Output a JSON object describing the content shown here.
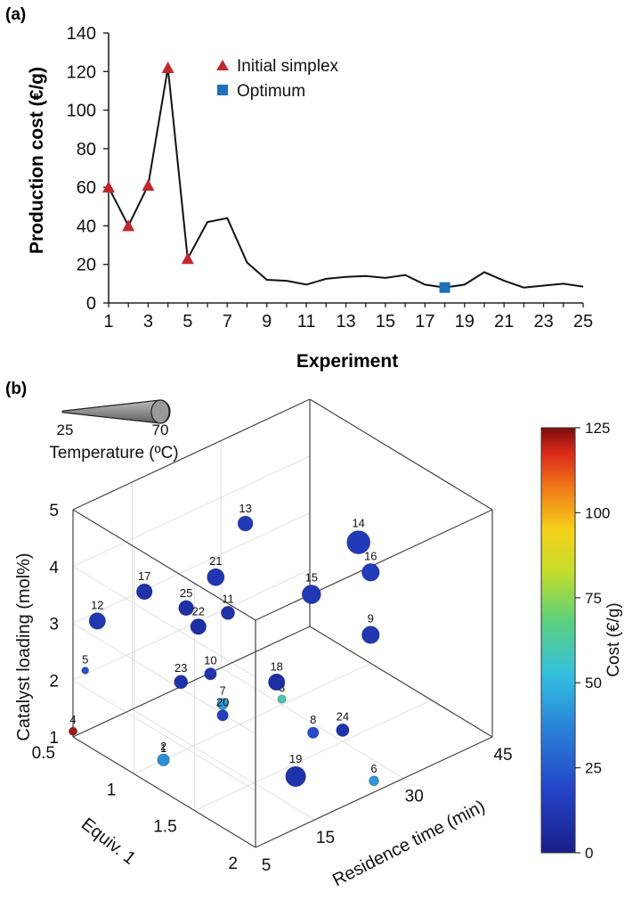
{
  "colors": {
    "line": "#111111",
    "initial": "#c0282e",
    "optimum": "#1c6fb8",
    "axis": "#222222",
    "box": "#444444",
    "grid": "#d9d9d9"
  },
  "chart_data": [
    {
      "panel": "(a)",
      "type": "line",
      "xlabel": "Experiment",
      "ylabel": "Production cost (€/g)",
      "xlim": [
        1,
        25
      ],
      "ylim": [
        0,
        140
      ],
      "xticks": [
        "1",
        "3",
        "5",
        "7",
        "9",
        "11",
        "13",
        "15",
        "17",
        "19",
        "21",
        "23",
        "25"
      ],
      "yticks": [
        "0",
        "20",
        "40",
        "60",
        "80",
        "100",
        "120",
        "140"
      ],
      "x": [
        1,
        2,
        3,
        4,
        5,
        6,
        7,
        8,
        9,
        10,
        11,
        12,
        13,
        14,
        15,
        16,
        17,
        18,
        19,
        20,
        21,
        22,
        23,
        24,
        25
      ],
      "y": [
        60,
        40,
        61,
        122,
        23,
        42,
        44,
        21,
        12,
        11.5,
        9.5,
        12.5,
        13.5,
        14,
        13,
        14.5,
        9.5,
        8,
        9.5,
        16,
        11.5,
        8,
        9,
        10,
        8.5
      ],
      "legend": [
        {
          "label": "Initial simplex",
          "marker": "triangle"
        },
        {
          "label": "Optimum",
          "marker": "square"
        }
      ],
      "legend_position": "top-center",
      "initial_simplex": {
        "x": [
          1,
          2,
          3,
          4,
          5
        ],
        "y": [
          60,
          40,
          61,
          122,
          23
        ]
      },
      "optimum": {
        "x": [
          18
        ],
        "y": [
          8
        ]
      }
    },
    {
      "panel": "(b)",
      "type": "scatter",
      "dimensions": 3,
      "xlabel": "Equiv. 1",
      "ylabel": "Residence time (min)",
      "zlabel": "Catalyst loading (mol%)",
      "size_legend": {
        "title": "Temperature (ºC)",
        "min": "25",
        "max": "70"
      },
      "colorbar": {
        "label": "Cost (€/g)",
        "ticks": [
          "0",
          "25",
          "50",
          "75",
          "100",
          "125"
        ],
        "range": [
          0,
          125
        ]
      },
      "xticks": [
        "0.5",
        "1",
        "1.5",
        "2"
      ],
      "yticks": [
        "5",
        "15",
        "30",
        "45"
      ],
      "zticks": [
        "1",
        "2",
        "3",
        "4",
        "5"
      ],
      "points": [
        {
          "label": "1",
          "equiv": 1.0,
          "time": 10,
          "loading": 1.0,
          "temp": 32,
          "cost": 60
        },
        {
          "label": "2",
          "equiv": 1.0,
          "time": 10,
          "loading": 1.0,
          "temp": 40,
          "cost": 40
        },
        {
          "label": "3",
          "equiv": 1.0,
          "time": 30,
          "loading": 1.1,
          "temp": 30,
          "cost": 61
        },
        {
          "label": "4",
          "equiv": 0.5,
          "time": 5,
          "loading": 1.1,
          "temp": 30,
          "cost": 122
        },
        {
          "label": "5",
          "equiv": 0.6,
          "time": 5,
          "loading": 2.3,
          "temp": 27,
          "cost": 23
        },
        {
          "label": "6",
          "equiv": 2.0,
          "time": 25,
          "loading": 1.2,
          "temp": 34,
          "cost": 42
        },
        {
          "label": "7",
          "equiv": 1.0,
          "time": 20,
          "loading": 1.5,
          "temp": 38,
          "cost": 44
        },
        {
          "label": "8",
          "equiv": 1.5,
          "time": 25,
          "loading": 1.4,
          "temp": 38,
          "cost": 21
        },
        {
          "label": "9",
          "equiv": 1.0,
          "time": 45,
          "loading": 1.5,
          "temp": 55,
          "cost": 12
        },
        {
          "label": "10",
          "equiv": 0.9,
          "time": 20,
          "loading": 1.9,
          "temp": 40,
          "cost": 11.5
        },
        {
          "label": "11",
          "equiv": 0.8,
          "time": 25,
          "loading": 2.6,
          "temp": 44,
          "cost": 9.5
        },
        {
          "label": "12",
          "equiv": 0.7,
          "time": 5,
          "loading": 3.3,
          "temp": 52,
          "cost": 12.5
        },
        {
          "label": "13",
          "equiv": 0.7,
          "time": 30,
          "loading": 3.8,
          "temp": 48,
          "cost": 13.5
        },
        {
          "label": "14",
          "equiv": 0.9,
          "time": 45,
          "loading": 3.0,
          "temp": 70,
          "cost": 14
        },
        {
          "label": "15",
          "equiv": 1.0,
          "time": 35,
          "loading": 2.7,
          "temp": 58,
          "cost": 13
        },
        {
          "label": "16",
          "equiv": 1.0,
          "time": 45,
          "loading": 2.6,
          "temp": 55,
          "cost": 14.5
        },
        {
          "label": "17",
          "equiv": 0.6,
          "time": 15,
          "loading": 3.2,
          "temp": 50,
          "cost": 9.5
        },
        {
          "label": "18",
          "equiv": 1.2,
          "time": 25,
          "loading": 1.9,
          "temp": 52,
          "cost": 8
        },
        {
          "label": "19",
          "equiv": 1.6,
          "time": 20,
          "loading": 1.0,
          "temp": 62,
          "cost": 9.5
        },
        {
          "label": "20",
          "equiv": 1.0,
          "time": 20,
          "loading": 1.3,
          "temp": 38,
          "cost": 16
        },
        {
          "label": "21",
          "equiv": 0.7,
          "time": 25,
          "loading": 3.1,
          "temp": 54,
          "cost": 11.5
        },
        {
          "label": "22",
          "equiv": 0.8,
          "time": 20,
          "loading": 2.6,
          "temp": 50,
          "cost": 8
        },
        {
          "label": "23",
          "equiv": 0.9,
          "time": 15,
          "loading": 2.0,
          "temp": 44,
          "cost": 9
        },
        {
          "label": "24",
          "equiv": 1.5,
          "time": 30,
          "loading": 1.2,
          "temp": 42,
          "cost": 10
        },
        {
          "label": "25",
          "equiv": 0.7,
          "time": 20,
          "loading": 2.8,
          "temp": 48,
          "cost": 8.5
        }
      ]
    }
  ]
}
